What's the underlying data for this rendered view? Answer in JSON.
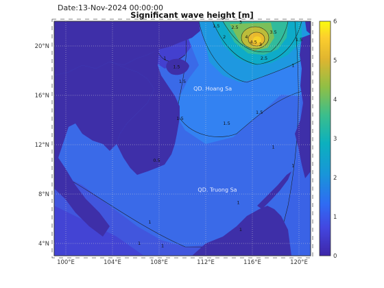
{
  "header": {
    "date": "Date:13-Nov-2024 00:00:00",
    "title": "Significant wave height [m]"
  },
  "map": {
    "x_ticks": [
      "100°E",
      "104°E",
      "108°E",
      "112°E",
      "116°E",
      "120°E"
    ],
    "y_ticks": [
      "20°N",
      "16°N",
      "12°N",
      "8°N",
      "4°N"
    ],
    "x_range": [
      99,
      121
    ],
    "y_range": [
      3,
      22
    ],
    "grid": "dotted",
    "place_labels": [
      {
        "text": "QD. Hoang Sa",
        "lon": 112.6,
        "lat": 16.4
      },
      {
        "text": "QD. Truong Sa",
        "lon": 113.0,
        "lat": 8.2
      }
    ],
    "contour_labels": [
      {
        "text": "1.5",
        "lon": 112.9,
        "lat": 21.5
      },
      {
        "text": "2",
        "lon": 113.6,
        "lat": 20.6
      },
      {
        "text": "2.5",
        "lon": 114.5,
        "lat": 21.4
      },
      {
        "text": "3",
        "lon": 115.0,
        "lat": 21.8
      },
      {
        "text": "3.5",
        "lon": 117.8,
        "lat": 21.0
      },
      {
        "text": "4",
        "lon": 115.5,
        "lat": 20.6
      },
      {
        "text": "4.5",
        "lon": 116.1,
        "lat": 20.2
      },
      {
        "text": "3",
        "lon": 116.7,
        "lat": 20.0
      },
      {
        "text": "2.5",
        "lon": 117.0,
        "lat": 18.9
      },
      {
        "text": "1.5",
        "lon": 120.0,
        "lat": 20.4
      },
      {
        "text": "1",
        "lon": 119.5,
        "lat": 18.3
      },
      {
        "text": "1",
        "lon": 108.5,
        "lat": 18.9
      },
      {
        "text": "1.5",
        "lon": 109.5,
        "lat": 18.2
      },
      {
        "text": "1.5",
        "lon": 110.0,
        "lat": 17.0
      },
      {
        "text": "1.5",
        "lon": 109.8,
        "lat": 14.0
      },
      {
        "text": "1.5",
        "lon": 113.8,
        "lat": 13.6
      },
      {
        "text": "1.5",
        "lon": 116.6,
        "lat": 14.5
      },
      {
        "text": "1",
        "lon": 117.8,
        "lat": 11.7
      },
      {
        "text": "1",
        "lon": 119.5,
        "lat": 10.2
      },
      {
        "text": "0.5",
        "lon": 107.8,
        "lat": 10.6
      },
      {
        "text": "1",
        "lon": 107.2,
        "lat": 5.6
      },
      {
        "text": "1",
        "lon": 114.8,
        "lat": 7.2
      },
      {
        "text": "1",
        "lon": 115.0,
        "lat": 5.0
      },
      {
        "text": "1",
        "lon": 106.3,
        "lat": 3.9
      },
      {
        "text": "1",
        "lon": 108.3,
        "lat": 3.7
      }
    ]
  },
  "colorbar": {
    "min": 0,
    "max": 6,
    "ticks": [
      "0",
      "1",
      "2",
      "3",
      "4",
      "5",
      "6"
    ],
    "colormap": "parula"
  }
}
